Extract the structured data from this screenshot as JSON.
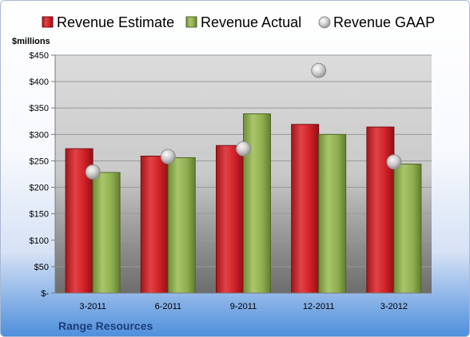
{
  "chart_data": {
    "type": "bar",
    "company": "Range Resources",
    "unit_label": "$millions",
    "categories": [
      "3-2011",
      "6-2011",
      "9-2011",
      "12-2011",
      "3-2012"
    ],
    "series": [
      {
        "name": "Revenue Estimate",
        "kind": "bar",
        "color": "#d01f26",
        "values": [
          273,
          259,
          279,
          319,
          314
        ]
      },
      {
        "name": "Revenue Actual",
        "kind": "bar",
        "color": "#8fae4f",
        "values": [
          228,
          256,
          339,
          300,
          244
        ]
      },
      {
        "name": "Revenue GAAP",
        "kind": "marker",
        "color": "#b9b9b9",
        "values": [
          229,
          258,
          273,
          421,
          248
        ]
      }
    ],
    "ylim": [
      0,
      450
    ],
    "y_ticks": [
      0,
      50,
      100,
      150,
      200,
      250,
      300,
      350,
      400,
      450
    ],
    "y_tick_labels": [
      "$-",
      "$50",
      "$100",
      "$150",
      "$200",
      "$250",
      "$300",
      "$350",
      "$400",
      "$450"
    ],
    "grid": true,
    "legend_position": "top"
  }
}
